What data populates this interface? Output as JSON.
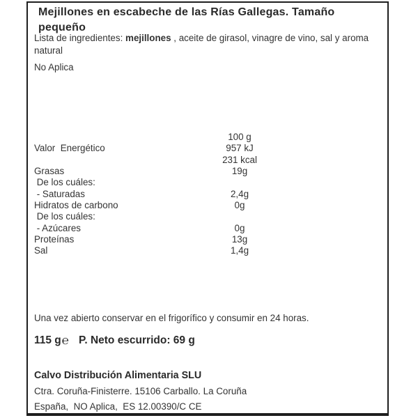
{
  "label": {
    "title": "Mejillones en escabeche de las Rías Gallegas. Tamaño pequeño",
    "ingredients": {
      "prefix": "Lista de ingredientes: ",
      "highlighted": "mejillones",
      "rest": " , aceite de girasol, vinagre de vino, sal y aroma natural"
    },
    "allergens_note": "No Aplica",
    "nutrition": {
      "column_header": "100 g",
      "rows": [
        {
          "label": "Valor  Energético",
          "value": "957 kJ"
        },
        {
          "label": "",
          "value": "231 kcal"
        },
        {
          "label": "Grasas",
          "value": "19g"
        },
        {
          "label": " De los cuáles:",
          "value": ""
        },
        {
          "label": " - Saturadas",
          "value": "2,4g"
        },
        {
          "label": "Hidratos de carbono",
          "value": "0g"
        },
        {
          "label": " De los cuáles:",
          "value": ""
        },
        {
          "label": " - Azúcares",
          "value": "0g"
        },
        {
          "label": "Proteínas",
          "value": "13g"
        },
        {
          "label": "Sal",
          "value": "1,4g"
        }
      ]
    },
    "storage_note": "Una vez abierto conservar en el frigorífico y consumir en 24 horas.",
    "net_quantity": {
      "net_weight": "115 g",
      "estimated_sign": "℮",
      "drained_weight": "P. Neto escurrido: 69 g"
    },
    "manufacturer": {
      "name": "Calvo Distribución Alimentaria SLU",
      "address": "Ctra. Coruña-Finisterre. 15106 Carballo. La Coruña",
      "origin_line": "España,  NO Aplica,  ES 12.00390/C CE"
    }
  }
}
